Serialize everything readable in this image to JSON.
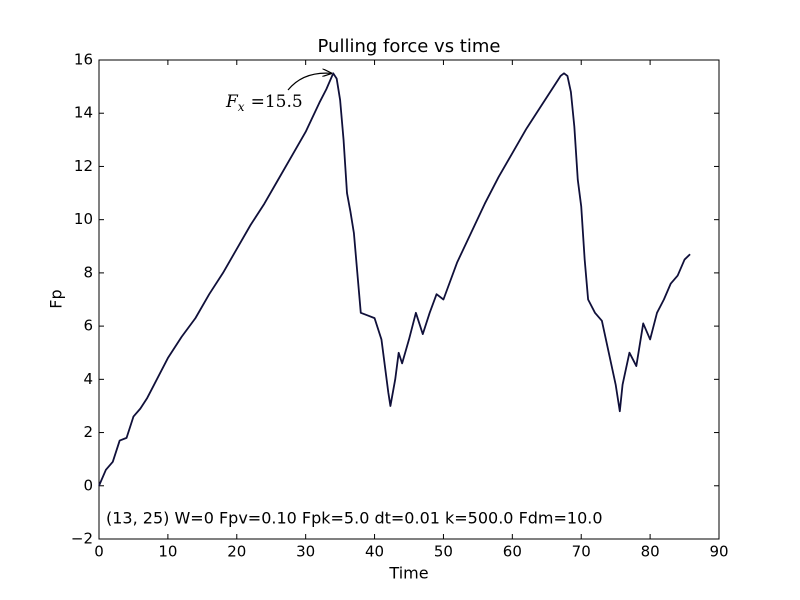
{
  "chart_data": {
    "type": "line",
    "title": "Pulling force vs time",
    "xlabel": "Time",
    "ylabel": "Fp",
    "x": [
      0,
      1,
      2,
      3,
      4,
      5,
      6,
      7,
      8,
      10,
      12,
      14,
      16,
      18,
      20,
      22,
      24,
      26,
      28,
      30,
      32,
      33,
      34,
      34.5,
      35,
      35.5,
      36,
      36.5,
      37,
      37.5,
      38,
      39,
      40,
      41,
      42,
      42.3,
      43,
      43.5,
      44,
      45,
      46,
      47,
      48,
      49,
      50,
      52,
      54,
      56,
      58,
      60,
      62,
      64,
      66,
      67,
      67.5,
      68,
      68.5,
      69,
      69.5,
      70,
      70.5,
      71,
      72,
      73,
      74,
      75,
      75.6,
      76,
      77,
      78,
      79,
      80,
      81,
      82,
      83,
      84,
      85,
      85.8
    ],
    "values": [
      0,
      0.6,
      0.9,
      1.7,
      1.8,
      2.6,
      2.9,
      3.3,
      3.8,
      4.8,
      5.6,
      6.3,
      7.2,
      8.0,
      8.9,
      9.8,
      10.6,
      11.5,
      12.4,
      13.3,
      14.4,
      14.9,
      15.5,
      15.3,
      14.5,
      13,
      11,
      10.3,
      9.5,
      8,
      6.5,
      6.4,
      6.3,
      5.5,
      3.5,
      3.0,
      4.0,
      5.0,
      4.6,
      5.5,
      6.5,
      5.7,
      6.5,
      7.2,
      7.0,
      8.4,
      9.5,
      10.6,
      11.6,
      12.5,
      13.4,
      14.2,
      15.0,
      15.4,
      15.5,
      15.4,
      14.8,
      13.5,
      11.5,
      10.5,
      8.5,
      7,
      6.5,
      6.2,
      5,
      3.8,
      2.8,
      3.8,
      5.0,
      4.5,
      6.1,
      5.5,
      6.5,
      7.0,
      7.6,
      7.9,
      8.5,
      8.7
    ],
    "color": "#10103a",
    "xlim": [
      0,
      90
    ],
    "xticks": [
      0,
      10,
      20,
      30,
      40,
      50,
      60,
      70,
      80,
      90
    ],
    "ylim": [
      -2,
      16
    ],
    "yticks": [
      {
        "value": -2,
        "label": "−2"
      },
      0,
      2,
      4,
      6,
      8,
      10,
      12,
      14,
      16
    ],
    "grid": false,
    "annotation": {
      "symbol": "F",
      "subscript": "x",
      "text": "=15.5"
    },
    "note": "(13, 25) W=0 Fpv=0.10 Fpk=5.0 dt=0.01 k=500.0 Fdm=10.0"
  }
}
